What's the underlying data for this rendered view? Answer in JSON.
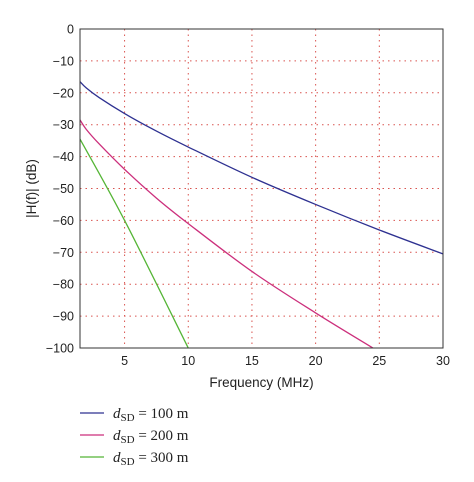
{
  "chart_data": {
    "type": "line",
    "title": "",
    "xlabel": "Frequency (MHz)",
    "ylabel": "|H(f)| (dB)",
    "xlim": [
      1.5,
      30
    ],
    "ylim": [
      -100,
      0
    ],
    "xticks": [
      5,
      10,
      15,
      20,
      25,
      30
    ],
    "yticks": [
      0,
      -10,
      -20,
      -30,
      -40,
      -50,
      -60,
      -70,
      -80,
      -90,
      -100
    ],
    "grid": true,
    "legend_position": "below-left",
    "series": [
      {
        "name": "d_SD = 100 m",
        "color": "#2e3191",
        "x": [
          1.5,
          2,
          3,
          5,
          7.5,
          10,
          15,
          20,
          25,
          30
        ],
        "y": [
          -16.5,
          -18.5,
          -21.5,
          -26.5,
          -32,
          -37,
          -46.5,
          -55,
          -63,
          -70.5
        ]
      },
      {
        "name": "d_SD = 200 m",
        "color": "#cc2f7c",
        "x": [
          1.5,
          2,
          3,
          5,
          7.5,
          10,
          15,
          20,
          24.5
        ],
        "y": [
          -28.5,
          -31.5,
          -36,
          -44,
          -53,
          -61,
          -76,
          -89,
          -100
        ]
      },
      {
        "name": "d_SD = 300 m",
        "color": "#55b536",
        "x": [
          1.5,
          5,
          10
        ],
        "y": [
          -34.5,
          -60,
          -100
        ]
      }
    ],
    "legend": [
      {
        "symbol": "d",
        "subscript": "SD",
        "value": "= 100 m",
        "color": "#2e3191"
      },
      {
        "symbol": "d",
        "subscript": "SD",
        "value": "= 200 m",
        "color": "#cc2f7c"
      },
      {
        "symbol": "d",
        "subscript": "SD",
        "value": "= 300 m",
        "color": "#55b536"
      }
    ]
  }
}
